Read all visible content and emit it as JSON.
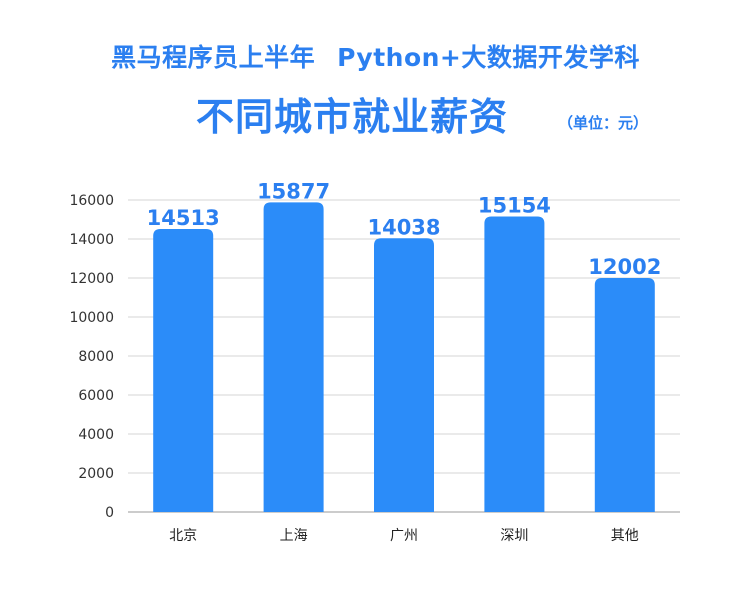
{
  "header": {
    "line1_part1": "黑马程序员上半年",
    "line1_part2": "Python+大数据开发学科",
    "line2": "不同城市就业薪资",
    "unit": "（单位：元）"
  },
  "chart_data": {
    "type": "bar",
    "title": "不同城市就业薪资",
    "categories": [
      "北京",
      "上海",
      "广州",
      "深圳",
      "其他"
    ],
    "values": [
      14513,
      15877,
      14038,
      15154,
      12002
    ],
    "ylim": [
      0,
      16000
    ],
    "yticks": [
      0,
      2000,
      4000,
      6000,
      8000,
      10000,
      12000,
      14000,
      16000
    ],
    "grid": true,
    "bar_color": "#2b8cf9",
    "label_color": "#2b7ff0"
  }
}
